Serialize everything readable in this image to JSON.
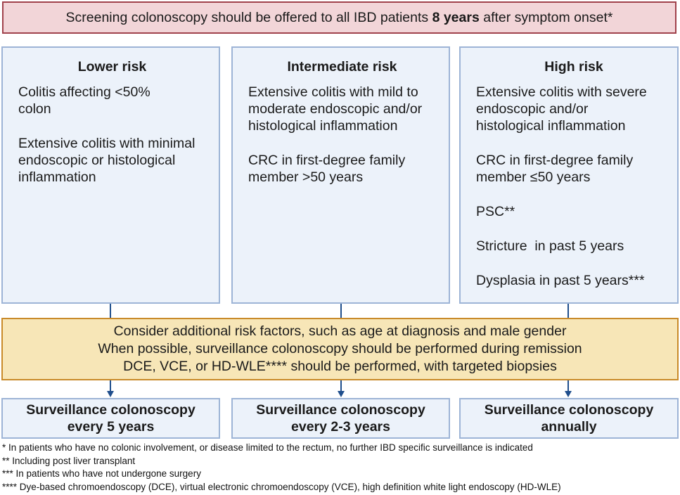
{
  "banner": {
    "text_before": "Screening colonoscopy should be offered to all IBD patients ",
    "text_bold": "8 years",
    "text_after": " after symptom onset*"
  },
  "risk_columns": [
    {
      "title": "Lower risk",
      "items": [
        "Colitis affecting <50% colon",
        "Extensive colitis with minimal endoscopic or histological inflammation"
      ]
    },
    {
      "title": "Intermediate risk",
      "items": [
        "Extensive colitis with mild to moderate endoscopic and/or histological inflammation",
        "CRC in first-degree family member >50 years"
      ]
    },
    {
      "title": "High risk",
      "items": [
        "Extensive colitis with severe endoscopic and/or histological inflammation",
        "CRC in first-degree family member ≤50 years",
        "PSC**",
        "Stricture  in past 5 years",
        "Dysplasia in past 5 years***"
      ]
    }
  ],
  "consider": {
    "lines": [
      "Consider additional risk factors, such as age at diagnosis and male gender",
      "When possible, surveillance colonoscopy should be performed during remission",
      "DCE, VCE, or HD-WLE**** should be performed, with targeted biopsies"
    ]
  },
  "surveillance": [
    {
      "line1": "Surveillance colonoscopy",
      "line2": "every 5 years"
    },
    {
      "line1": "Surveillance colonoscopy",
      "line2": "every 2-3 years"
    },
    {
      "line1": "Surveillance colonoscopy",
      "line2": "annually"
    }
  ],
  "footnotes": [
    "* In patients who have no colonic involvement, or disease limited to the rectum, no further IBD specific surveillance is indicated",
    "** Including post liver transplant",
    "*** In patients who have not undergone surgery",
    "**** Dye-based chromoendoscopy (DCE), virtual electronic chromoendoscopy (VCE), high definition white light endoscopy (HD-WLE)"
  ],
  "colors": {
    "banner_fill": "#f2d5d8",
    "banner_border": "#a0414b",
    "risk_fill": "#ecf2fa",
    "risk_border": "#9db4d6",
    "consider_fill": "#f7e6b7",
    "consider_border": "#c98a2a",
    "connector": "#1f4e8c"
  }
}
